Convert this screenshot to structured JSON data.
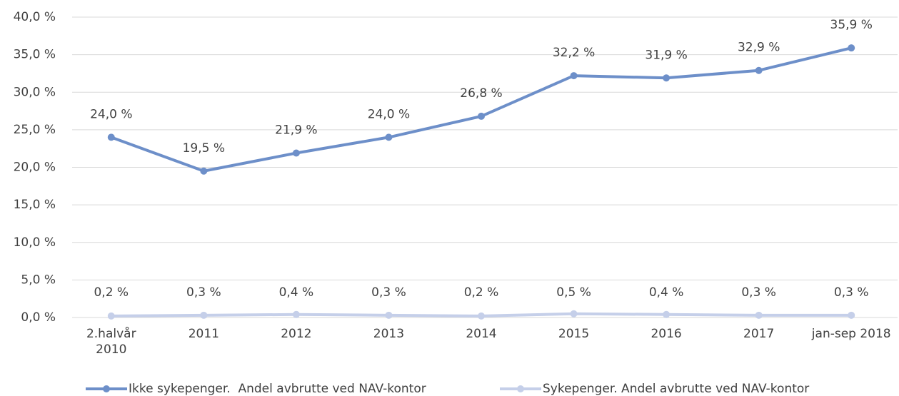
{
  "chart_data": {
    "type": "line",
    "categories": [
      "2.halvår\n2010",
      "2011",
      "2012",
      "2013",
      "2014",
      "2015",
      "2016",
      "2017",
      "jan-sep 2018"
    ],
    "series": [
      {
        "name": "Ikke sykepenger.  Andel avbrutte ved NAV-kontor",
        "color": "#6d8fc9",
        "values": [
          24.0,
          19.5,
          21.9,
          24.0,
          26.8,
          32.2,
          31.9,
          32.9,
          35.9
        ],
        "value_labels": [
          "24,0 %",
          "19,5 %",
          "21,9 %",
          "24,0 %",
          "26,8 %",
          "32,2 %",
          "31,9 %",
          "32,9 %",
          "35,9 %"
        ]
      },
      {
        "name": "Sykepenger. Andel avbrutte ved NAV-kontor",
        "color": "#c5cfe9",
        "values": [
          0.2,
          0.3,
          0.4,
          0.3,
          0.2,
          0.5,
          0.4,
          0.3,
          0.3
        ],
        "value_labels": [
          "0,2 %",
          "0,3 %",
          "0,4 %",
          "0,3 %",
          "0,2 %",
          "0,5 %",
          "0,4 %",
          "0,3 %",
          "0,3 %"
        ]
      }
    ],
    "ylim": [
      0,
      40
    ],
    "yticks": [
      {
        "value": 0,
        "label": "0,0 %"
      },
      {
        "value": 5,
        "label": "5,0 %"
      },
      {
        "value": 10,
        "label": "10,0 %"
      },
      {
        "value": 15,
        "label": "15,0 %"
      },
      {
        "value": 20,
        "label": "20,0 %"
      },
      {
        "value": 25,
        "label": "25,0 %"
      },
      {
        "value": 30,
        "label": "30,0 %"
      },
      {
        "value": 35,
        "label": "35,0 %"
      },
      {
        "value": 40,
        "label": "40,0 %"
      }
    ],
    "grid": true,
    "legend": "bottom"
  }
}
